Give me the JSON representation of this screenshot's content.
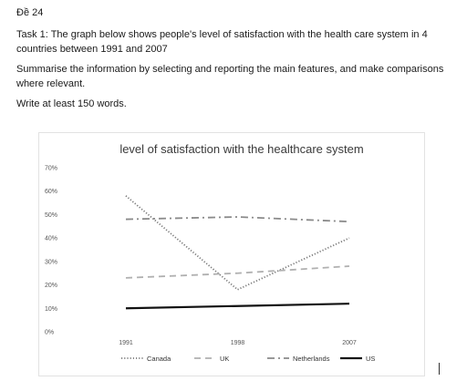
{
  "document": {
    "heading": "Đề 24",
    "task": "Task 1: The graph below shows people's level of satisfaction with the health care system in 4 countries between 1991 and 2007",
    "instruction": "Summarise the information by selecting and reporting the main features, and make comparisons where relevant.",
    "words": "Write at least 150 words."
  },
  "chart_data": {
    "type": "line",
    "title": "level of satisfaction with the healthcare system",
    "x": [
      "1991",
      "1998",
      "2007"
    ],
    "y_ticks": [
      "0%",
      "10%",
      "20%",
      "30%",
      "40%",
      "50%",
      "60%",
      "70%"
    ],
    "ylim": [
      0,
      70
    ],
    "grid": false,
    "legend_position": "bottom",
    "series": [
      {
        "name": "Canada",
        "values": [
          58,
          18,
          40
        ],
        "color": "#7a7a7a",
        "style": "dotted"
      },
      {
        "name": "UK",
        "values": [
          23,
          25,
          28
        ],
        "color": "#b0b0b0",
        "style": "dashed"
      },
      {
        "name": "Netherlands",
        "values": [
          48,
          49,
          47
        ],
        "color": "#8a8a8a",
        "style": "dashdot"
      },
      {
        "name": "US",
        "values": [
          10,
          11,
          12
        ],
        "color": "#111111",
        "style": "solid"
      }
    ]
  }
}
